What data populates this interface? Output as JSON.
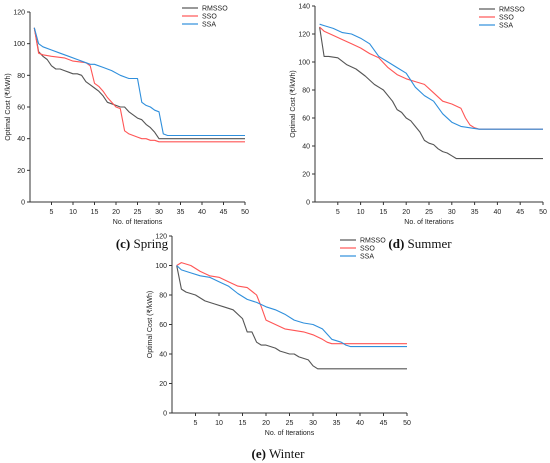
{
  "colors": {
    "RMSSO": "#555555",
    "SSO": "#ff5555",
    "SSA": "#2f8fdc",
    "axis": "#333333"
  },
  "chart_data": [
    {
      "type": "line",
      "caption_letter": "(c)",
      "caption_text": "Spring",
      "xlabel": "No. of Iterations",
      "ylabel": "Optimal Cost (₹/kWh)",
      "xlim": [
        0,
        50
      ],
      "ylim": [
        0,
        120
      ],
      "xticks": [
        5,
        10,
        15,
        20,
        25,
        30,
        35,
        40,
        45,
        50
      ],
      "yticks": [
        0,
        20,
        40,
        60,
        80,
        100,
        120
      ],
      "legend": "top-right",
      "series": [
        {
          "name": "RMSSO",
          "x": [
            1,
            2,
            3,
            4,
            5,
            6,
            7,
            8,
            9,
            10,
            11,
            12,
            13,
            14,
            15,
            16,
            17,
            18,
            19,
            20,
            21,
            22,
            23,
            24,
            25,
            26,
            27,
            28,
            29,
            30,
            31,
            35,
            40,
            45,
            50
          ],
          "y": [
            110,
            95,
            92,
            90,
            86,
            84,
            84,
            83,
            82,
            81,
            81,
            80,
            76,
            74,
            72,
            70,
            67,
            63,
            62,
            61,
            60,
            60,
            57,
            55,
            53,
            52,
            49,
            47,
            44,
            40,
            40,
            40,
            40,
            40,
            40
          ]
        },
        {
          "name": "SSO",
          "x": [
            1,
            2,
            3,
            5,
            8,
            10,
            13,
            14,
            15,
            16,
            17,
            18,
            19,
            20,
            21,
            22,
            23,
            24,
            25,
            26,
            27,
            28,
            29,
            30,
            31,
            35,
            40,
            45,
            50
          ],
          "y": [
            110,
            94,
            93,
            92,
            91,
            89,
            88,
            86,
            75,
            73,
            70,
            66,
            63,
            60,
            59,
            45,
            43,
            42,
            41,
            40,
            40,
            39,
            39,
            38,
            38,
            38,
            38,
            38,
            38
          ]
        },
        {
          "name": "SSA",
          "x": [
            1,
            2,
            3,
            5,
            7,
            9,
            11,
            13,
            14,
            15,
            17,
            19,
            21,
            23,
            25,
            26,
            27,
            28,
            29,
            30,
            31,
            32,
            35,
            40,
            45,
            50
          ],
          "y": [
            110,
            100,
            98,
            96,
            94,
            92,
            90,
            88,
            87,
            87,
            85,
            83,
            80,
            78,
            78,
            63,
            61,
            60,
            58,
            57,
            43,
            42,
            42,
            42,
            42,
            42
          ]
        }
      ]
    },
    {
      "type": "line",
      "caption_letter": "(d)",
      "caption_text": "Summer",
      "xlabel": "No. of Iterations",
      "ylabel": "Optimal Cost (₹/kWh)",
      "xlim": [
        0,
        50
      ],
      "ylim": [
        0,
        140
      ],
      "xticks": [
        5,
        10,
        15,
        20,
        25,
        30,
        35,
        40,
        45,
        50
      ],
      "yticks": [
        0,
        20,
        40,
        60,
        80,
        100,
        120,
        140
      ],
      "legend": "top-right",
      "series": [
        {
          "name": "RMSSO",
          "x": [
            1,
            2,
            3,
            5,
            7,
            9,
            11,
            13,
            15,
            17,
            18,
            19,
            20,
            21,
            22,
            23,
            24,
            25,
            26,
            27,
            28,
            29,
            30,
            31,
            35,
            40,
            45,
            50
          ],
          "y": [
            125,
            104,
            104,
            103,
            98,
            95,
            90,
            84,
            80,
            72,
            66,
            64,
            60,
            58,
            54,
            50,
            44,
            42,
            41,
            38,
            36,
            35,
            33,
            31,
            31,
            31,
            31,
            31
          ]
        },
        {
          "name": "SSO",
          "x": [
            1,
            2,
            4,
            6,
            8,
            10,
            12,
            14,
            16,
            18,
            20,
            22,
            24,
            26,
            28,
            30,
            32,
            33,
            34,
            35,
            36,
            40,
            45,
            50
          ],
          "y": [
            125,
            122,
            119,
            116,
            113,
            110,
            106,
            103,
            96,
            91,
            88,
            86,
            84,
            78,
            72,
            70,
            67,
            60,
            55,
            53,
            52,
            52,
            52,
            52
          ]
        },
        {
          "name": "SSA",
          "x": [
            1,
            2,
            4,
            6,
            8,
            10,
            12,
            14,
            16,
            18,
            20,
            22,
            24,
            26,
            28,
            30,
            32,
            34,
            36,
            40,
            45,
            50
          ],
          "y": [
            127,
            126,
            124,
            121,
            120,
            117,
            113,
            104,
            100,
            96,
            92,
            82,
            76,
            72,
            63,
            57,
            54,
            53,
            52,
            52,
            52,
            52
          ]
        }
      ]
    },
    {
      "type": "line",
      "caption_letter": "(e)",
      "caption_text": "Winter",
      "xlabel": "No. of Iterations",
      "ylabel": "Optimal Cost (₹/kWh)",
      "xlim": [
        0,
        50
      ],
      "ylim": [
        0,
        120
      ],
      "xticks": [
        5,
        10,
        15,
        20,
        25,
        30,
        35,
        40,
        45,
        50
      ],
      "yticks": [
        0,
        20,
        40,
        60,
        80,
        100,
        120
      ],
      "legend": "top-right",
      "series": [
        {
          "name": "RMSSO",
          "x": [
            1,
            2,
            3,
            5,
            7,
            9,
            11,
            13,
            15,
            16,
            17,
            18,
            19,
            20,
            21,
            22,
            23,
            24,
            25,
            26,
            27,
            28,
            29,
            30,
            31,
            35,
            40,
            45,
            50
          ],
          "y": [
            100,
            84,
            82,
            80,
            76,
            74,
            72,
            70,
            64,
            55,
            55,
            48,
            46,
            46,
            45,
            44,
            42,
            41,
            40,
            40,
            38,
            37,
            36,
            32,
            30,
            30,
            30,
            30,
            30
          ]
        },
        {
          "name": "SSO",
          "x": [
            1,
            2,
            4,
            6,
            8,
            10,
            12,
            14,
            16,
            18,
            19,
            20,
            22,
            24,
            26,
            28,
            30,
            32,
            33,
            34,
            35,
            36,
            40,
            45,
            50
          ],
          "y": [
            100,
            102,
            100,
            96,
            93,
            92,
            89,
            86,
            85,
            80,
            72,
            63,
            60,
            57,
            56,
            55,
            53,
            50,
            48,
            47,
            47,
            47,
            47,
            47,
            47
          ]
        },
        {
          "name": "SSA",
          "x": [
            1,
            2,
            4,
            6,
            8,
            10,
            12,
            14,
            16,
            18,
            20,
            22,
            24,
            26,
            28,
            30,
            32,
            34,
            36,
            37,
            38,
            40,
            45,
            50
          ],
          "y": [
            100,
            97,
            95,
            93,
            92,
            89,
            86,
            81,
            77,
            75,
            72,
            70,
            67,
            63,
            61,
            60,
            57,
            50,
            48,
            46,
            45,
            45,
            45,
            45
          ]
        }
      ]
    }
  ]
}
